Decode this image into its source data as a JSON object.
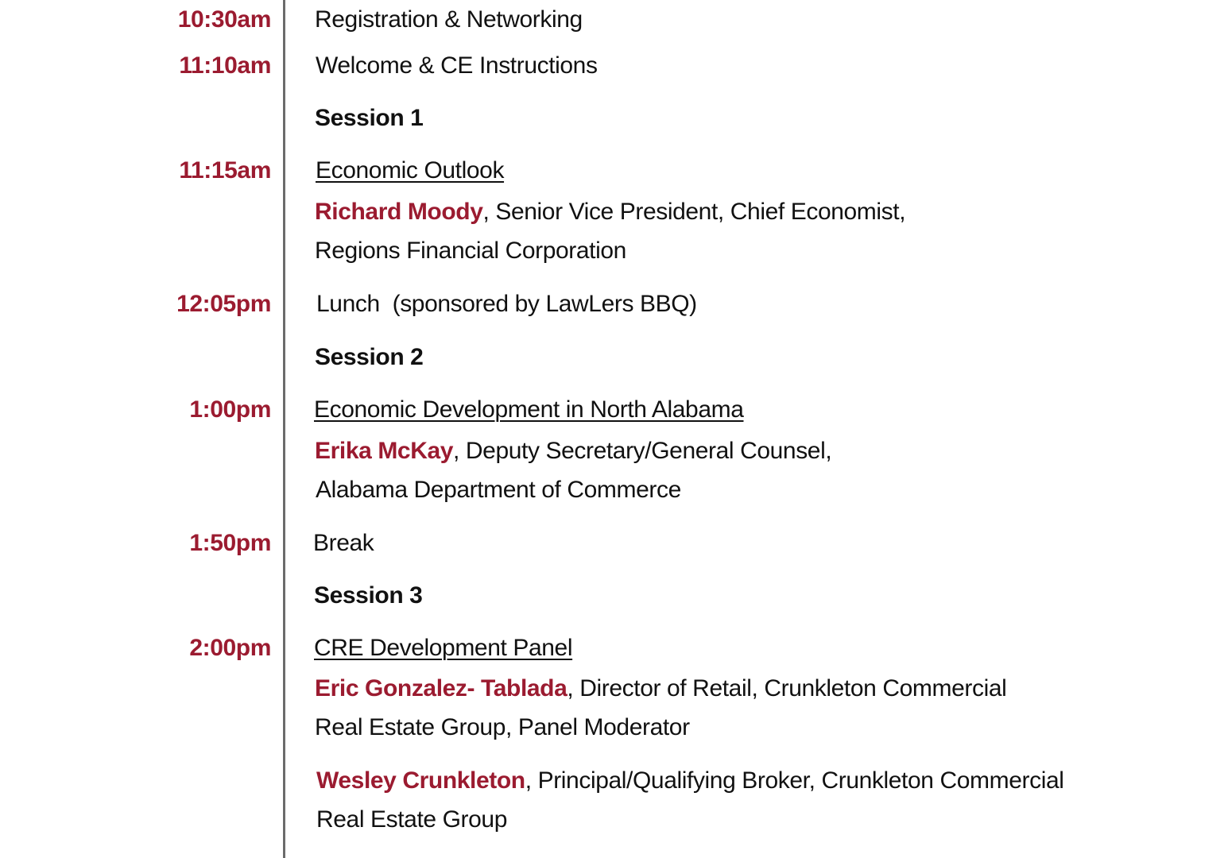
{
  "agenda": [
    {
      "time": "10:30am",
      "title": "Registration & Networking"
    },
    {
      "time": "11:10am",
      "title": "Welcome & CE Instructions"
    },
    {
      "session": "Session 1"
    },
    {
      "time": "11:15am",
      "title": "Economic Outlook",
      "speakers": [
        {
          "name": "Richard Moody",
          "role": ", Senior Vice President, Chief Economist,",
          "org": "Regions Financial Corporation"
        }
      ]
    },
    {
      "time": "12:05pm",
      "title": "Lunch  (sponsored by LawLers BBQ)"
    },
    {
      "session": "Session 2"
    },
    {
      "time": "1:00pm",
      "title": "Economic Development in North Alabama",
      "speakers": [
        {
          "name": "Erika McKay",
          "role": ", Deputy Secretary/General Counsel,",
          "org": "Alabama Department of Commerce"
        }
      ]
    },
    {
      "time": "1:50pm",
      "title": "Break"
    },
    {
      "session": "Session 3"
    },
    {
      "time": "2:00pm",
      "title": "CRE Development Panel",
      "speakers": [
        {
          "name": "Eric Gonzalez- Tablada",
          "role": ", Director of Retail, Crunkleton Commercial",
          "org": "Real Estate Group, Panel Moderator"
        },
        {
          "name": "Wesley Crunkleton",
          "role": ", Principal/Qualifying Broker, Crunkleton Commercial",
          "org": "Real Estate Group"
        }
      ]
    }
  ]
}
